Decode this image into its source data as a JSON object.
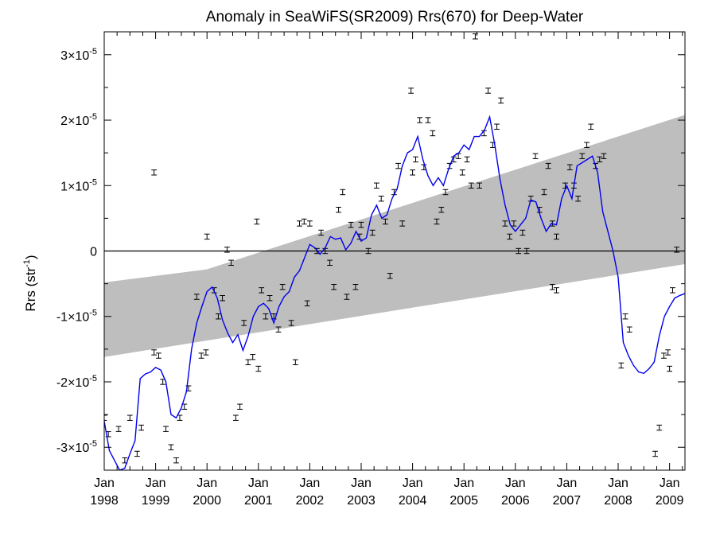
{
  "chart_data": {
    "type": "scatter",
    "title": "Anomaly in SeaWiFS(SR2009) Rrs(670) for Deep-Water",
    "ylabel": {
      "main": "Rrs (str",
      "sup": "-1",
      "close": ")"
    },
    "xlabel": "",
    "xlim": [
      1998.0,
      2009.3
    ],
    "ylim": [
      -3.35e-05,
      3.35e-05
    ],
    "grid": false,
    "y_ticks": [
      {
        "value": -3e-05,
        "mant": "-3×10",
        "exp": "-5"
      },
      {
        "value": -2e-05,
        "mant": "-2×10",
        "exp": "-5"
      },
      {
        "value": -1e-05,
        "mant": "-1×10",
        "exp": "-5"
      },
      {
        "value": 0,
        "mant": "0",
        "exp": ""
      },
      {
        "value": 1e-05,
        "mant": "1×10",
        "exp": "-5"
      },
      {
        "value": 2e-05,
        "mant": "2×10",
        "exp": "-5"
      },
      {
        "value": 3e-05,
        "mant": "3×10",
        "exp": "-5"
      }
    ],
    "x_ticks": [
      {
        "value": 1998.0,
        "month": "Jan",
        "year": "1998"
      },
      {
        "value": 1999.0,
        "month": "Jan",
        "year": "1999"
      },
      {
        "value": 2000.0,
        "month": "Jan",
        "year": "2000"
      },
      {
        "value": 2001.0,
        "month": "Jan",
        "year": "2001"
      },
      {
        "value": 2002.0,
        "month": "Jan",
        "year": "2002"
      },
      {
        "value": 2003.0,
        "month": "Jan",
        "year": "2003"
      },
      {
        "value": 2004.0,
        "month": "Jan",
        "year": "2004"
      },
      {
        "value": 2005.0,
        "month": "Jan",
        "year": "2005"
      },
      {
        "value": 2006.0,
        "month": "Jan",
        "year": "2006"
      },
      {
        "value": 2007.0,
        "month": "Jan",
        "year": "2007"
      },
      {
        "value": 2008.0,
        "month": "Jan",
        "year": "2008"
      },
      {
        "value": 2009.0,
        "month": "Jan",
        "year": "2009"
      }
    ],
    "trend_band": {
      "color": "#bebebe",
      "upper": [
        [
          1998.0,
          -4.8e-06
        ],
        [
          2000.0,
          -2.8e-06
        ],
        [
          2009.3,
          2.08e-05
        ]
      ],
      "lower": [
        [
          1998.0,
          -1.62e-05
        ],
        [
          2009.3,
          -2e-06
        ]
      ]
    },
    "zero_line": {
      "y": 0,
      "color": "#000000"
    },
    "series": [
      {
        "type": "scatter_errorbar",
        "color": "#000000",
        "points": [
          [
            1998.0,
            -2.55e-05
          ],
          [
            1998.08,
            -2.8e-05
          ],
          [
            1998.28,
            -2.72e-05
          ],
          [
            1998.4,
            -3.2e-05
          ],
          [
            1998.5,
            -2.55e-05
          ],
          [
            1998.64,
            -3.1e-05
          ],
          [
            1998.72,
            -2.7e-05
          ],
          [
            1998.97,
            1.2e-05
          ],
          [
            1998.97,
            -1.55e-05
          ],
          [
            1999.06,
            -1.6e-05
          ],
          [
            1999.14,
            -2e-05
          ],
          [
            1999.2,
            -2.72e-05
          ],
          [
            1999.3,
            -3e-05
          ],
          [
            1999.4,
            -3.2e-05
          ],
          [
            1999.47,
            -2.55e-05
          ],
          [
            1999.56,
            -2.38e-05
          ],
          [
            1999.64,
            -2.1e-05
          ],
          [
            1999.8,
            -7e-06
          ],
          [
            1999.89,
            -1.6e-05
          ],
          [
            1999.98,
            -1.55e-05
          ],
          [
            2000.0,
            2.2e-06
          ],
          [
            2000.14,
            -6e-06
          ],
          [
            2000.22,
            -1e-05
          ],
          [
            2000.3,
            -7.2e-06
          ],
          [
            2000.39,
            2e-07
          ],
          [
            2000.47,
            -1.8e-06
          ],
          [
            2000.56,
            -2.55e-05
          ],
          [
            2000.64,
            -2.38e-05
          ],
          [
            2000.72,
            -1.1e-05
          ],
          [
            2000.8,
            -1.7e-05
          ],
          [
            2000.89,
            -1.62e-05
          ],
          [
            2000.97,
            4.5e-06
          ],
          [
            2001.0,
            -1.8e-05
          ],
          [
            2001.06,
            -6e-06
          ],
          [
            2001.14,
            -1e-05
          ],
          [
            2001.22,
            -7.2e-06
          ],
          [
            2001.3,
            -1e-05
          ],
          [
            2001.39,
            -1.2e-05
          ],
          [
            2001.47,
            -5.5e-06
          ],
          [
            2001.64,
            -1.1e-05
          ],
          [
            2001.72,
            -1.7e-05
          ],
          [
            2001.8,
            4.2e-06
          ],
          [
            2001.89,
            4.5e-06
          ],
          [
            2001.95,
            -8e-06
          ],
          [
            2002.0,
            4.2e-06
          ],
          [
            2002.14,
            0.0
          ],
          [
            2002.22,
            2.8e-06
          ],
          [
            2002.3,
            0.0
          ],
          [
            2002.39,
            -1.8e-06
          ],
          [
            2002.47,
            -5.5e-06
          ],
          [
            2002.56,
            6.3e-06
          ],
          [
            2002.64,
            9e-06
          ],
          [
            2002.72,
            -7e-06
          ],
          [
            2002.8,
            4e-06
          ],
          [
            2002.89,
            -5.5e-06
          ],
          [
            2002.97,
            2.2e-06
          ],
          [
            2003.0,
            4e-06
          ],
          [
            2003.14,
            0.0
          ],
          [
            2003.22,
            2.8e-06
          ],
          [
            2003.3,
            1e-05
          ],
          [
            2003.39,
            8e-06
          ],
          [
            2003.47,
            4.5e-06
          ],
          [
            2003.56,
            -3.8e-06
          ],
          [
            2003.64,
            9e-06
          ],
          [
            2003.72,
            1.3e-05
          ],
          [
            2003.8,
            4.2e-06
          ],
          [
            2003.97,
            2.45e-05
          ],
          [
            2004.0,
            1.2e-05
          ],
          [
            2004.06,
            1.4e-05
          ],
          [
            2004.14,
            2e-05
          ],
          [
            2004.22,
            1.28e-05
          ],
          [
            2004.3,
            2e-05
          ],
          [
            2004.39,
            1.8e-05
          ],
          [
            2004.47,
            4.5e-06
          ],
          [
            2004.56,
            6.3e-06
          ],
          [
            2004.64,
            9e-06
          ],
          [
            2004.72,
            1.3e-05
          ],
          [
            2004.8,
            1.4e-05
          ],
          [
            2004.89,
            1.45e-05
          ],
          [
            2004.97,
            1.2e-05
          ],
          [
            2005.06,
            1.4e-05
          ],
          [
            2005.14,
            1e-05
          ],
          [
            2005.22,
            3.28e-05
          ],
          [
            2005.3,
            1e-05
          ],
          [
            2005.39,
            1.8e-05
          ],
          [
            2005.47,
            2.45e-05
          ],
          [
            2005.56,
            1.62e-05
          ],
          [
            2005.64,
            1.9e-05
          ],
          [
            2005.72,
            2.3e-05
          ],
          [
            2005.8,
            4.2e-06
          ],
          [
            2005.89,
            2.2e-06
          ],
          [
            2005.97,
            4.2e-06
          ],
          [
            2006.06,
            0.0
          ],
          [
            2006.14,
            2.8e-06
          ],
          [
            2006.22,
            0.0
          ],
          [
            2006.3,
            8e-06
          ],
          [
            2006.39,
            1.45e-05
          ],
          [
            2006.47,
            6.3e-06
          ],
          [
            2006.56,
            9e-06
          ],
          [
            2006.64,
            1.3e-05
          ],
          [
            2006.72,
            4.2e-06
          ],
          [
            2006.8,
            2.2e-06
          ],
          [
            2006.72,
            -5.5e-06
          ],
          [
            2006.8,
            -6e-06
          ],
          [
            2006.97,
            1e-05
          ],
          [
            2007.06,
            1.28e-05
          ],
          [
            2007.14,
            1e-05
          ],
          [
            2007.22,
            8e-06
          ],
          [
            2007.3,
            1.45e-05
          ],
          [
            2007.39,
            1.62e-05
          ],
          [
            2007.47,
            1.9e-05
          ],
          [
            2007.56,
            1.3e-05
          ],
          [
            2007.64,
            1.4e-05
          ],
          [
            2007.72,
            1.45e-05
          ],
          [
            2008.06,
            -1.75e-05
          ],
          [
            2008.14,
            -1e-05
          ],
          [
            2008.22,
            -1.2e-05
          ],
          [
            2008.72,
            -3.1e-05
          ],
          [
            2008.8,
            -2.7e-05
          ],
          [
            2008.89,
            -1.6e-05
          ],
          [
            2008.97,
            -1.55e-05
          ],
          [
            2009.0,
            -1.8e-05
          ],
          [
            2009.06,
            -6e-06
          ],
          [
            2009.14,
            2e-07
          ]
        ]
      },
      {
        "type": "line",
        "color": "#0000ee",
        "points": [
          [
            1998.0,
            -2.6e-05
          ],
          [
            1998.1,
            -3.05e-05
          ],
          [
            1998.2,
            -3.2e-05
          ],
          [
            1998.3,
            -3.35e-05
          ],
          [
            1998.4,
            -3.32e-05
          ],
          [
            1998.5,
            -3.1e-05
          ],
          [
            1998.6,
            -2.9e-05
          ],
          [
            1998.7,
            -1.95e-05
          ],
          [
            1998.8,
            -1.88e-05
          ],
          [
            1998.9,
            -1.85e-05
          ],
          [
            1999.0,
            -1.78e-05
          ],
          [
            1999.1,
            -1.82e-05
          ],
          [
            1999.2,
            -2e-05
          ],
          [
            1999.3,
            -2.5e-05
          ],
          [
            1999.4,
            -2.55e-05
          ],
          [
            1999.5,
            -2.4e-05
          ],
          [
            1999.6,
            -2.15e-05
          ],
          [
            1999.7,
            -1.5e-05
          ],
          [
            1999.8,
            -1.1e-05
          ],
          [
            1999.9,
            -8.5e-06
          ],
          [
            2000.0,
            -6.2e-06
          ],
          [
            2000.1,
            -5.5e-06
          ],
          [
            2000.2,
            -7.2e-06
          ],
          [
            2000.3,
            -1.05e-05
          ],
          [
            2000.4,
            -1.25e-05
          ],
          [
            2000.5,
            -1.4e-05
          ],
          [
            2000.6,
            -1.28e-05
          ],
          [
            2000.7,
            -1.52e-05
          ],
          [
            2000.8,
            -1.3e-05
          ],
          [
            2000.9,
            -1e-05
          ],
          [
            2001.0,
            -8.5e-06
          ],
          [
            2001.1,
            -8e-06
          ],
          [
            2001.2,
            -8.8e-06
          ],
          [
            2001.3,
            -1.1e-05
          ],
          [
            2001.4,
            -8.5e-06
          ],
          [
            2001.5,
            -7e-06
          ],
          [
            2001.6,
            -6.2e-06
          ],
          [
            2001.7,
            -4e-06
          ],
          [
            2001.8,
            -3e-06
          ],
          [
            2001.9,
            -1e-06
          ],
          [
            2002.0,
            1e-06
          ],
          [
            2002.1,
            5e-07
          ],
          [
            2002.2,
            -5e-07
          ],
          [
            2002.3,
            5e-07
          ],
          [
            2002.4,
            2.2e-06
          ],
          [
            2002.5,
            1.8e-06
          ],
          [
            2002.6,
            2e-06
          ],
          [
            2002.7,
            2e-07
          ],
          [
            2002.8,
            1.2e-06
          ],
          [
            2002.9,
            3e-06
          ],
          [
            2003.0,
            1.5e-06
          ],
          [
            2003.1,
            2e-06
          ],
          [
            2003.2,
            5.5e-06
          ],
          [
            2003.3,
            7e-06
          ],
          [
            2003.4,
            5e-06
          ],
          [
            2003.5,
            5.5e-06
          ],
          [
            2003.6,
            8e-06
          ],
          [
            2003.7,
            9.5e-06
          ],
          [
            2003.8,
            1.3e-05
          ],
          [
            2003.9,
            1.5e-05
          ],
          [
            2004.0,
            1.55e-05
          ],
          [
            2004.1,
            1.75e-05
          ],
          [
            2004.2,
            1.4e-05
          ],
          [
            2004.3,
            1.15e-05
          ],
          [
            2004.4,
            1e-05
          ],
          [
            2004.5,
            1.12e-05
          ],
          [
            2004.6,
            1e-05
          ],
          [
            2004.7,
            1.25e-05
          ],
          [
            2004.8,
            1.45e-05
          ],
          [
            2004.9,
            1.5e-05
          ],
          [
            2005.0,
            1.62e-05
          ],
          [
            2005.1,
            1.55e-05
          ],
          [
            2005.2,
            1.75e-05
          ],
          [
            2005.3,
            1.75e-05
          ],
          [
            2005.4,
            1.85e-05
          ],
          [
            2005.5,
            2.05e-05
          ],
          [
            2005.6,
            1.62e-05
          ],
          [
            2005.7,
            1.1e-05
          ],
          [
            2005.8,
            7e-06
          ],
          [
            2005.9,
            4e-06
          ],
          [
            2006.0,
            3e-06
          ],
          [
            2006.1,
            4e-06
          ],
          [
            2006.2,
            5e-06
          ],
          [
            2006.3,
            7.8e-06
          ],
          [
            2006.4,
            7.5e-06
          ],
          [
            2006.5,
            5e-06
          ],
          [
            2006.6,
            3e-06
          ],
          [
            2006.7,
            4.2e-06
          ],
          [
            2006.8,
            4e-06
          ],
          [
            2006.9,
            8e-06
          ],
          [
            2007.0,
            1e-05
          ],
          [
            2007.1,
            8e-06
          ],
          [
            2007.2,
            1.3e-05
          ],
          [
            2007.3,
            1.35e-05
          ],
          [
            2007.4,
            1.4e-05
          ],
          [
            2007.5,
            1.45e-05
          ],
          [
            2007.6,
            1.2e-05
          ],
          [
            2007.7,
            6e-06
          ],
          [
            2007.8,
            3e-06
          ],
          [
            2007.9,
            0.0
          ],
          [
            2008.0,
            -4e-06
          ],
          [
            2008.1,
            -1.4e-05
          ],
          [
            2008.2,
            -1.6e-05
          ],
          [
            2008.3,
            -1.75e-05
          ],
          [
            2008.4,
            -1.85e-05
          ],
          [
            2008.5,
            -1.87e-05
          ],
          [
            2008.6,
            -1.8e-05
          ],
          [
            2008.7,
            -1.7e-05
          ],
          [
            2008.8,
            -1.3e-05
          ],
          [
            2008.9,
            -1e-05
          ],
          [
            2009.0,
            -8.5e-06
          ],
          [
            2009.1,
            -7.2e-06
          ],
          [
            2009.2,
            -6.8e-06
          ],
          [
            2009.3,
            -6.5e-06
          ]
        ]
      }
    ]
  }
}
